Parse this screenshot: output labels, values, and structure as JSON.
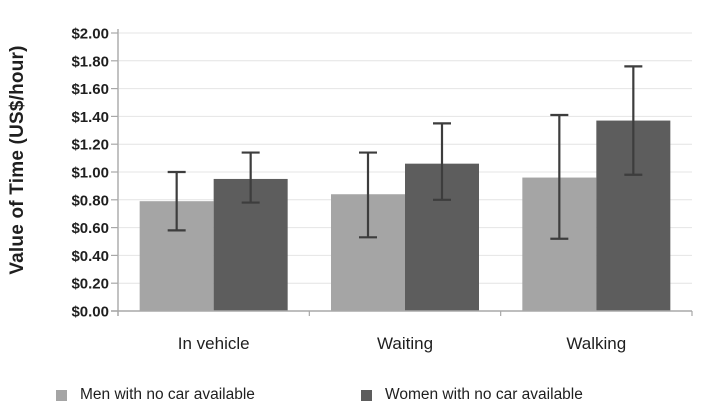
{
  "chart_data": {
    "type": "bar",
    "title": "",
    "categories": [
      "In vehicle",
      "Waiting",
      "Walking"
    ],
    "series": [
      {
        "name": "Men with no car available",
        "key": "men",
        "color": "#a5a5a5",
        "values": [
          0.79,
          0.84,
          0.96
        ],
        "error_low": [
          0.58,
          0.53,
          0.52
        ],
        "error_high": [
          1.0,
          1.14,
          1.41
        ]
      },
      {
        "name": "Women with no car available",
        "key": "women",
        "color": "#5d5d5d",
        "values": [
          0.95,
          1.06,
          1.37
        ],
        "error_low": [
          0.78,
          0.8,
          0.98
        ],
        "error_high": [
          1.14,
          1.35,
          1.76
        ]
      }
    ],
    "xlabel": "",
    "ylabel": "Value of Time (US$/hour)",
    "ylim": [
      0,
      2.0
    ],
    "ytick_step": 0.2,
    "ytick_labels": [
      "$0.00",
      "$0.20",
      "$0.40",
      "$0.60",
      "$0.80",
      "$1.00",
      "$1.20",
      "$1.40",
      "$1.60",
      "$1.80",
      "$2.00"
    ],
    "grid": "horizontal",
    "legend_position": "bottom",
    "error_bars": true,
    "colors": {
      "gridline": "#e4e4e4",
      "axis": "#a8a8a8",
      "error_bar": "#3d3d3d",
      "text": "#1f1f1f",
      "background": "#ffffff"
    }
  }
}
